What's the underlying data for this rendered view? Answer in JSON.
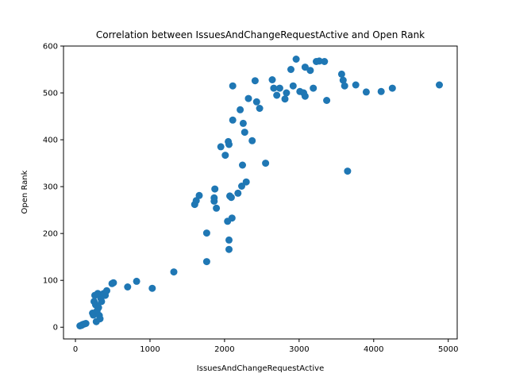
{
  "chart_data": {
    "type": "scatter",
    "title": "Correlation between IssuesAndChangeRequestActive and Open Rank",
    "xlabel": "IssuesAndChangeRequestActive",
    "ylabel": "Open Rank",
    "xlim": [
      -160,
      5120
    ],
    "ylim": [
      -25,
      600
    ],
    "xticks": [
      0,
      1000,
      2000,
      3000,
      4000,
      5000
    ],
    "yticks": [
      0,
      100,
      200,
      300,
      400,
      500,
      600
    ],
    "grid": false,
    "marker_color": "#1f77b4",
    "points": [
      [
        60,
        3
      ],
      [
        80,
        4
      ],
      [
        90,
        5
      ],
      [
        100,
        6
      ],
      [
        120,
        7
      ],
      [
        140,
        8
      ],
      [
        230,
        30
      ],
      [
        240,
        26
      ],
      [
        250,
        55
      ],
      [
        260,
        68
      ],
      [
        270,
        48
      ],
      [
        280,
        12
      ],
      [
        290,
        35
      ],
      [
        300,
        72
      ],
      [
        310,
        42
      ],
      [
        320,
        25
      ],
      [
        330,
        18
      ],
      [
        340,
        62
      ],
      [
        350,
        55
      ],
      [
        360,
        70
      ],
      [
        380,
        72
      ],
      [
        400,
        68
      ],
      [
        420,
        78
      ],
      [
        490,
        93
      ],
      [
        510,
        95
      ],
      [
        700,
        86
      ],
      [
        820,
        98
      ],
      [
        1030,
        83
      ],
      [
        1320,
        118
      ],
      [
        1600,
        262
      ],
      [
        1620,
        270
      ],
      [
        1660,
        281
      ],
      [
        1760,
        140
      ],
      [
        1760,
        201
      ],
      [
        1860,
        269
      ],
      [
        1860,
        276
      ],
      [
        1870,
        295
      ],
      [
        1890,
        254
      ],
      [
        1950,
        385
      ],
      [
        2010,
        367
      ],
      [
        2040,
        226
      ],
      [
        2050,
        396
      ],
      [
        2060,
        390
      ],
      [
        2060,
        186
      ],
      [
        2060,
        166
      ],
      [
        2070,
        280
      ],
      [
        2090,
        277
      ],
      [
        2100,
        233
      ],
      [
        2110,
        515
      ],
      [
        2110,
        442
      ],
      [
        2180,
        286
      ],
      [
        2210,
        464
      ],
      [
        2230,
        301
      ],
      [
        2240,
        346
      ],
      [
        2250,
        435
      ],
      [
        2270,
        416
      ],
      [
        2290,
        310
      ],
      [
        2320,
        488
      ],
      [
        2370,
        398
      ],
      [
        2410,
        526
      ],
      [
        2430,
        481
      ],
      [
        2470,
        467
      ],
      [
        2550,
        350
      ],
      [
        2640,
        528
      ],
      [
        2660,
        510
      ],
      [
        2700,
        495
      ],
      [
        2740,
        510
      ],
      [
        2810,
        487
      ],
      [
        2830,
        500
      ],
      [
        2890,
        550
      ],
      [
        2920,
        515
      ],
      [
        2960,
        572
      ],
      [
        3010,
        503
      ],
      [
        3060,
        500
      ],
      [
        3080,
        555
      ],
      [
        3080,
        493
      ],
      [
        3150,
        548
      ],
      [
        3190,
        510
      ],
      [
        3230,
        567
      ],
      [
        3270,
        568
      ],
      [
        3340,
        567
      ],
      [
        3370,
        484
      ],
      [
        3570,
        540
      ],
      [
        3590,
        527
      ],
      [
        3610,
        515
      ],
      [
        3650,
        333
      ],
      [
        3760,
        517
      ],
      [
        3900,
        502
      ],
      [
        4100,
        503
      ],
      [
        4250,
        510
      ],
      [
        4880,
        517
      ]
    ]
  }
}
